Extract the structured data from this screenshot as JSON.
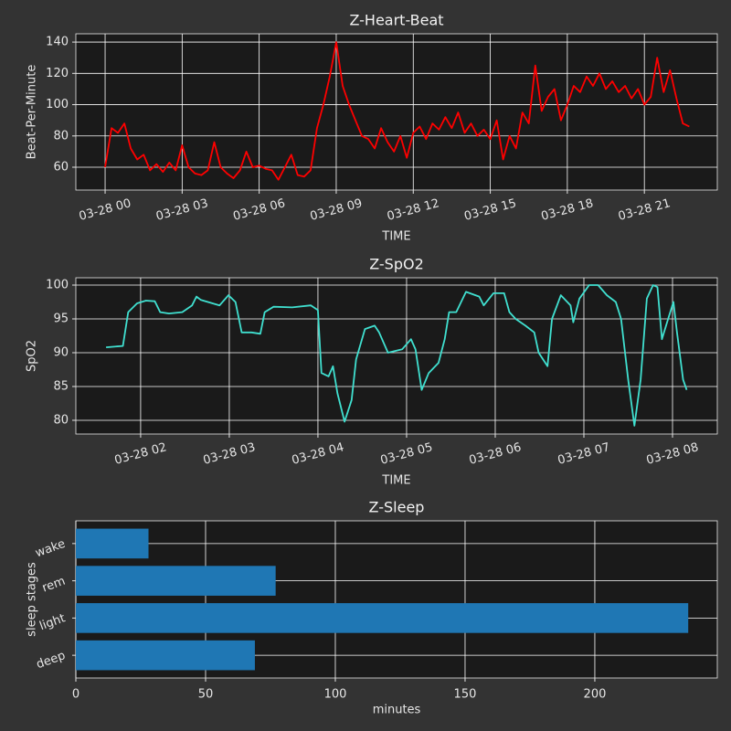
{
  "chart_data": [
    {
      "type": "line",
      "title": "Z-Heart-Beat",
      "xlabel": "TIME",
      "ylabel": "Beat-Per-Minute",
      "color": "#ff0000",
      "grid": true,
      "x": [
        0,
        0.25,
        0.5,
        0.75,
        1,
        1.25,
        1.5,
        1.75,
        2,
        2.25,
        2.5,
        2.75,
        3,
        3.25,
        3.5,
        3.75,
        4,
        4.25,
        4.5,
        4.75,
        5,
        5.25,
        5.5,
        5.75,
        6,
        6.25,
        6.5,
        6.75,
        7,
        7.25,
        7.5,
        7.75,
        8,
        8.25,
        8.5,
        8.75,
        9,
        9.25,
        9.5,
        9.75,
        10,
        10.25,
        10.5,
        10.75,
        11,
        11.25,
        11.5,
        11.75,
        12,
        12.25,
        12.5,
        12.75,
        13,
        13.25,
        13.5,
        13.75,
        14,
        14.25,
        14.5,
        14.75,
        15,
        15.25,
        15.5,
        15.75,
        16,
        16.25,
        16.5,
        16.75,
        17,
        17.25,
        17.5,
        17.75,
        18,
        18.25,
        18.5,
        18.75,
        19,
        19.25,
        19.5,
        19.75,
        20,
        20.25,
        20.5,
        20.75,
        21,
        21.25,
        21.5,
        21.75,
        22,
        22.25,
        22.5,
        22.75
      ],
      "values": [
        60,
        85,
        82,
        88,
        72,
        65,
        68,
        58,
        62,
        57,
        63,
        58,
        74,
        60,
        56,
        55,
        58,
        76,
        60,
        56,
        53,
        58,
        70,
        60,
        61,
        59,
        58,
        52,
        60,
        68,
        55,
        54,
        58,
        85,
        100,
        118,
        140,
        112,
        100,
        90,
        80,
        78,
        72,
        85,
        76,
        70,
        80,
        66,
        82,
        86,
        78,
        88,
        84,
        92,
        85,
        95,
        82,
        88,
        80,
        84,
        78,
        90,
        65,
        80,
        72,
        95,
        88,
        125,
        96,
        105,
        110,
        90,
        100,
        112,
        108,
        118,
        112,
        120,
        110,
        115,
        108,
        112,
        104,
        110,
        100,
        105,
        130,
        108,
        122,
        104,
        88,
        86
      ],
      "xlim": [
        -1.14,
        23.84
      ],
      "ylim": [
        45.4,
        145.3
      ],
      "xticks": [
        {
          "value": 0,
          "label": "03-28 00"
        },
        {
          "value": 3,
          "label": "03-28 03"
        },
        {
          "value": 6,
          "label": "03-28 06"
        },
        {
          "value": 9,
          "label": "03-28 09"
        },
        {
          "value": 12,
          "label": "03-28 12"
        },
        {
          "value": 15,
          "label": "03-28 15"
        },
        {
          "value": 18,
          "label": "03-28 18"
        },
        {
          "value": 21,
          "label": "03-28 21"
        }
      ],
      "yticks": [
        60,
        80,
        100,
        120,
        140
      ]
    },
    {
      "type": "line",
      "title": "Z-SpO2",
      "xlabel": "TIME",
      "ylabel": "SpO2",
      "color": "#40e0d0",
      "grid": true,
      "x": [
        1.61,
        1.8,
        1.86,
        1.96,
        2.06,
        2.16,
        2.22,
        2.32,
        2.47,
        2.58,
        2.63,
        2.68,
        2.89,
        2.99,
        3.07,
        3.14,
        3.25,
        3.35,
        3.4,
        3.5,
        3.71,
        3.92,
        4.0,
        4.04,
        4.12,
        4.17,
        4.22,
        4.3,
        4.38,
        4.43,
        4.53,
        4.64,
        4.69,
        4.79,
        4.95,
        5.05,
        5.1,
        5.17,
        5.25,
        5.36,
        5.43,
        5.48,
        5.56,
        5.67,
        5.82,
        5.87,
        5.98,
        6.1,
        6.16,
        6.23,
        6.34,
        6.44,
        6.49,
        6.59,
        6.64,
        6.74,
        6.85,
        6.88,
        6.95,
        7.06,
        7.16,
        7.26,
        7.36,
        7.42,
        7.5,
        7.57,
        7.64,
        7.71,
        7.78,
        7.83,
        7.88,
        7.95,
        8.01,
        8.05,
        8.12,
        8.16
      ],
      "values": [
        90.8,
        91,
        96,
        97.3,
        97.7,
        97.6,
        96,
        95.8,
        96,
        97,
        98.3,
        97.8,
        97,
        98.5,
        97.5,
        93,
        93,
        92.8,
        96,
        96.8,
        96.7,
        97,
        96.3,
        87,
        86.5,
        88,
        84,
        79.8,
        83,
        89,
        93.5,
        94,
        93,
        90,
        90.5,
        92,
        90.5,
        84.5,
        87,
        88.5,
        92,
        96,
        96,
        99,
        98.3,
        97,
        98.8,
        98.8,
        96,
        95,
        94,
        93,
        90,
        88,
        95,
        98.5,
        97,
        94.5,
        98,
        100,
        100,
        98.5,
        97.5,
        95,
        86,
        79.2,
        86,
        98,
        100,
        99.7,
        92,
        95,
        97.5,
        93,
        86,
        84.5
      ],
      "xlim": [
        1.269,
        8.505
      ],
      "ylim": [
        77.97,
        101.08
      ],
      "xticks": [
        {
          "value": 2,
          "label": "03-28 02"
        },
        {
          "value": 3,
          "label": "03-28 03"
        },
        {
          "value": 4,
          "label": "03-28 04"
        },
        {
          "value": 5,
          "label": "03-28 05"
        },
        {
          "value": 6,
          "label": "03-28 06"
        },
        {
          "value": 7,
          "label": "03-28 07"
        },
        {
          "value": 8,
          "label": "03-28 08"
        }
      ],
      "yticks": [
        80,
        85,
        90,
        95,
        100
      ]
    },
    {
      "type": "bar",
      "orientation": "horizontal",
      "title": "Z-Sleep",
      "xlabel": "minutes",
      "ylabel": "sleep stages",
      "color": "#1f77b4",
      "grid": true,
      "categories": [
        "deep",
        "light",
        "rem",
        "wake"
      ],
      "values": [
        69,
        236,
        77,
        28
      ],
      "xlim": [
        0,
        247.2
      ],
      "xticks": [
        0,
        50,
        100,
        150,
        200
      ]
    }
  ]
}
